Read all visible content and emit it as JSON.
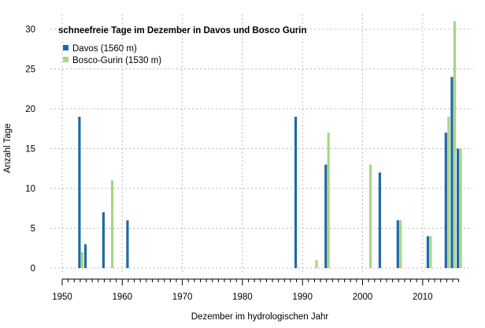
{
  "chart_data": {
    "type": "bar",
    "title": "schneefreie Tage im Dezember in Davos und Bosco Gurin",
    "xlabel": "Dezember im hydrologischen Jahr",
    "ylabel": "Anzahl Tage",
    "xlim": [
      1950,
      2016
    ],
    "ylim": [
      0,
      30
    ],
    "xticks": [
      1950,
      1960,
      1970,
      1980,
      1990,
      2000,
      2010
    ],
    "yticks": [
      0,
      5,
      10,
      15,
      20,
      25,
      30
    ],
    "grid": true,
    "legend": "top-left",
    "series": [
      {
        "name": "Davos (1560 m)",
        "color": "#1f6aa5",
        "points": [
          [
            1953,
            19
          ],
          [
            1954,
            3
          ],
          [
            1957,
            7
          ],
          [
            1961,
            6
          ],
          [
            1989,
            19
          ],
          [
            1994,
            13
          ],
          [
            2003,
            12
          ],
          [
            2006,
            6
          ],
          [
            2011,
            4
          ],
          [
            2014,
            17
          ],
          [
            2015,
            24
          ],
          [
            2016,
            15
          ]
        ]
      },
      {
        "name": "Bosco-Gurin (1530 m)",
        "color": "#a6d784",
        "points": [
          [
            1953,
            2
          ],
          [
            1958,
            11
          ],
          [
            1992,
            1
          ],
          [
            1994,
            17
          ],
          [
            2001,
            13
          ],
          [
            2006,
            6
          ],
          [
            2011,
            4
          ],
          [
            2014,
            19
          ],
          [
            2015,
            31
          ],
          [
            2016,
            15
          ]
        ]
      }
    ]
  }
}
